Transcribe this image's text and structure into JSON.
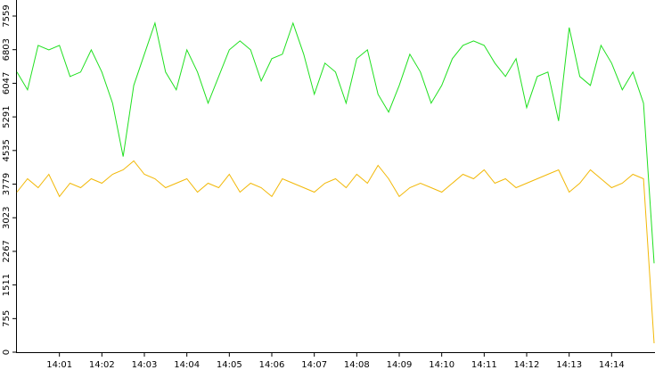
{
  "chart_data": {
    "type": "line",
    "x": [
      "14:00:00",
      "14:00:15",
      "14:00:30",
      "14:00:45",
      "14:01:00",
      "14:01:15",
      "14:01:30",
      "14:01:45",
      "14:02:00",
      "14:02:15",
      "14:02:30",
      "14:02:45",
      "14:03:00",
      "14:03:15",
      "14:03:30",
      "14:03:45",
      "14:04:00",
      "14:04:15",
      "14:04:30",
      "14:04:45",
      "14:05:00",
      "14:05:15",
      "14:05:30",
      "14:05:45",
      "14:06:00",
      "14:06:15",
      "14:06:30",
      "14:06:45",
      "14:07:00",
      "14:07:15",
      "14:07:30",
      "14:07:45",
      "14:08:00",
      "14:08:15",
      "14:08:30",
      "14:08:45",
      "14:09:00",
      "14:09:15",
      "14:09:30",
      "14:09:45",
      "14:10:00",
      "14:10:15",
      "14:10:30",
      "14:10:45",
      "14:11:00",
      "14:11:15",
      "14:11:30",
      "14:11:45",
      "14:12:00",
      "14:12:15",
      "14:12:30",
      "14:12:45",
      "14:13:00",
      "14:13:15",
      "14:13:30",
      "14:13:45",
      "14:14:00",
      "14:14:15",
      "14:14:30",
      "14:14:45",
      "14:15:00"
    ],
    "series": [
      {
        "color": "#1fe01f",
        "values": [
          6300,
          5900,
          6900,
          6800,
          6900,
          6200,
          6300,
          6800,
          6300,
          5600,
          4400,
          6000,
          6700,
          7400,
          6300,
          5900,
          6800,
          6300,
          5600,
          6200,
          6800,
          7000,
          6800,
          6100,
          6600,
          6700,
          7400,
          6700,
          5800,
          6500,
          6300,
          5600,
          6600,
          6800,
          5800,
          5400,
          6000,
          6700,
          6300,
          5600,
          6000,
          6600,
          6900,
          7000,
          6900,
          6500,
          6200,
          6600,
          5500,
          6200,
          6300,
          5200,
          7300,
          6200,
          6000,
          6900,
          6500,
          5900,
          6300,
          5600,
          2000
        ]
      },
      {
        "color": "#f2b807",
        "values": [
          3600,
          3900,
          3700,
          4000,
          3500,
          3800,
          3700,
          3900,
          3800,
          4000,
          4100,
          4300,
          4000,
          3900,
          3700,
          3800,
          3900,
          3600,
          3800,
          3700,
          4000,
          3600,
          3800,
          3700,
          3500,
          3900,
          3800,
          3700,
          3600,
          3800,
          3900,
          3700,
          4000,
          3800,
          4200,
          3900,
          3500,
          3700,
          3800,
          3700,
          3600,
          3800,
          4000,
          3900,
          4100,
          3800,
          3900,
          3700,
          3800,
          3900,
          4000,
          4100,
          3600,
          3800,
          4100,
          3900,
          3700,
          3800,
          4000,
          3900,
          200
        ]
      }
    ],
    "xlim": [
      "14:00:00",
      "14:15:00"
    ],
    "xticks": [
      "14:01",
      "14:02",
      "14:03",
      "14:04",
      "14:05",
      "14:06",
      "14:07",
      "14:08",
      "14:09",
      "14:10",
      "14:11",
      "14:12",
      "14:13",
      "14:14"
    ],
    "ylim": [
      0,
      7559
    ],
    "yticks": [
      0,
      755,
      1511,
      2267,
      3023,
      3779,
      4535,
      5291,
      6047,
      6803,
      7559
    ]
  }
}
